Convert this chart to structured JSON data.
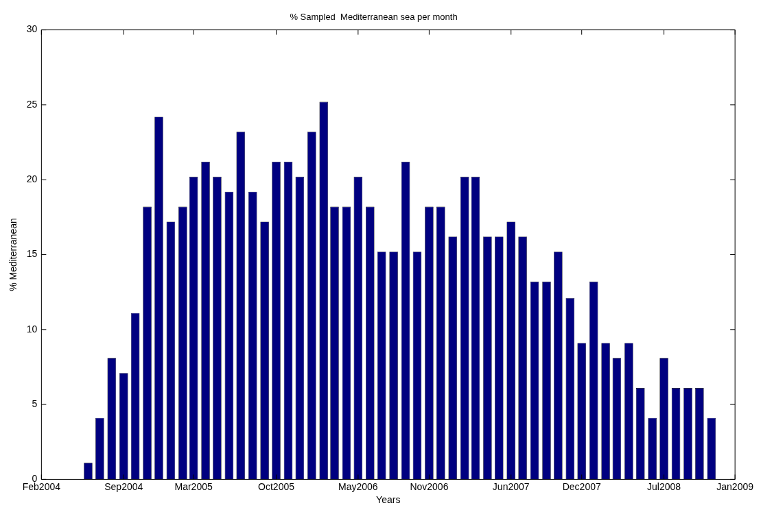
{
  "chart_data": {
    "type": "bar",
    "title": "% Sampled  Mediterranean sea per month",
    "xlabel": "Years",
    "ylabel": "% Mediterranean",
    "color": "#000080",
    "x": [
      "2004-06",
      "2004-07",
      "2004-08",
      "2004-09",
      "2004-10",
      "2004-11",
      "2004-12",
      "2005-01",
      "2005-02",
      "2005-03",
      "2005-04",
      "2005-05",
      "2005-06",
      "2005-07",
      "2005-08",
      "2005-09",
      "2005-10",
      "2005-11",
      "2005-12",
      "2006-01",
      "2006-02",
      "2006-03",
      "2006-04",
      "2006-05",
      "2006-06",
      "2006-07",
      "2006-08",
      "2006-09",
      "2006-10",
      "2006-11",
      "2006-12",
      "2007-01",
      "2007-02",
      "2007-03",
      "2007-04",
      "2007-05",
      "2007-06",
      "2007-07",
      "2007-08",
      "2007-09",
      "2007-10",
      "2007-11",
      "2007-12",
      "2008-01",
      "2008-02",
      "2008-03",
      "2008-04",
      "2008-05",
      "2008-06",
      "2008-07",
      "2008-08",
      "2008-09",
      "2008-10",
      "2008-11"
    ],
    "values": [
      1.1,
      4.1,
      8.1,
      7.1,
      11.1,
      18.2,
      24.2,
      17.2,
      18.2,
      20.2,
      21.2,
      20.2,
      19.2,
      23.2,
      19.2,
      17.2,
      21.2,
      21.2,
      20.2,
      23.2,
      25.2,
      18.2,
      18.2,
      20.2,
      18.2,
      15.2,
      15.2,
      21.2,
      15.2,
      18.2,
      18.2,
      16.2,
      20.2,
      20.2,
      16.2,
      16.2,
      17.2,
      16.2,
      13.2,
      13.2,
      15.2,
      12.1,
      9.1,
      13.2,
      9.1,
      8.1,
      9.1,
      6.1,
      4.1,
      8.1,
      6.1,
      6.1,
      6.1,
      4.1
    ],
    "xlim": [
      "2004-02",
      "2009-01"
    ],
    "xticks": [
      {
        "value": "2004-02",
        "label": "Feb2004"
      },
      {
        "value": "2004-09",
        "label": "Sep2004"
      },
      {
        "value": "2005-03",
        "label": "Mar2005"
      },
      {
        "value": "2005-10",
        "label": "Oct2005"
      },
      {
        "value": "2006-05",
        "label": "May2006"
      },
      {
        "value": "2006-11",
        "label": "Nov2006"
      },
      {
        "value": "2007-06",
        "label": "Jun2007"
      },
      {
        "value": "2007-12",
        "label": "Dec2007"
      },
      {
        "value": "2008-07",
        "label": "Jul2008"
      },
      {
        "value": "2009-01",
        "label": "Jan2009"
      }
    ],
    "ylim": [
      0,
      30
    ],
    "yticks": [
      0,
      5,
      10,
      15,
      20,
      25,
      30
    ]
  }
}
